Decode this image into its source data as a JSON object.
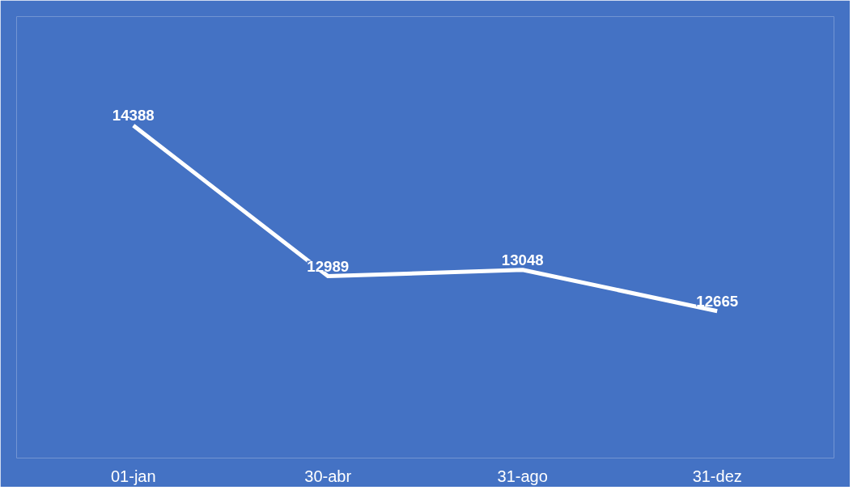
{
  "chart_data": {
    "type": "line",
    "categories": [
      "01-jan",
      "30-abr",
      "31-ago",
      "31-dez"
    ],
    "series": [
      {
        "color": "#ffffff",
        "values": [
          14388,
          12989,
          13048,
          12665
        ]
      }
    ],
    "data_labels": true,
    "ylim": [
      11300,
      15400
    ],
    "line_style": "solid"
  }
}
